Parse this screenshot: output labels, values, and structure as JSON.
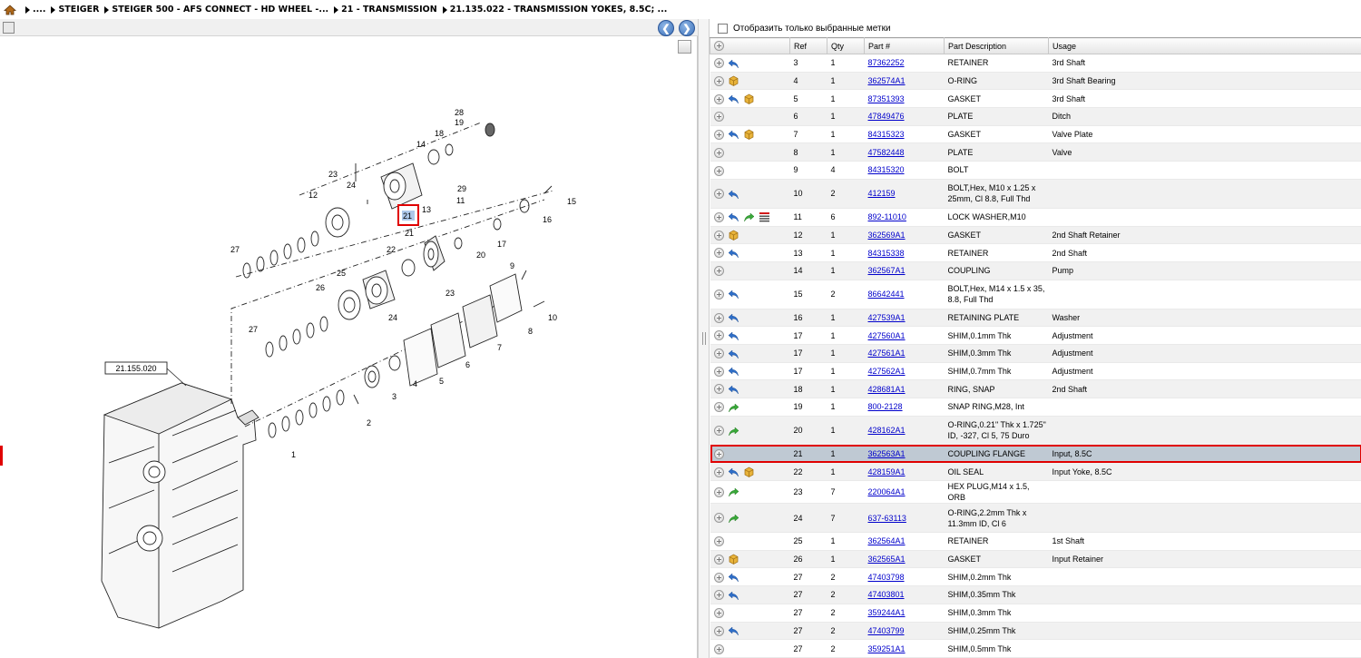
{
  "breadcrumb": {
    "segments": [
      "....",
      "STEIGER",
      "STEIGER 500 - AFS CONNECT - HD WHEEL -...",
      "21 - TRANSMISSION",
      "21.135.022 - TRANSMISSION YOKES, 8.5C; ..."
    ]
  },
  "filter": {
    "label": "Отобразить только выбранные метки"
  },
  "table": {
    "headers": {
      "ref": "Ref",
      "qty": "Qty",
      "part": "Part #",
      "desc": "Part Description",
      "usage": "Usage"
    },
    "rows": [
      {
        "ref": "3",
        "qty": "1",
        "part": "87362252",
        "desc": "RETAINER",
        "usage": "3rd Shaft",
        "icons": [
          "back"
        ]
      },
      {
        "ref": "4",
        "qty": "1",
        "part": "362574A1",
        "desc": "O-RING",
        "usage": "3rd Shaft Bearing",
        "icons": [
          "box"
        ]
      },
      {
        "ref": "5",
        "qty": "1",
        "part": "87351393",
        "desc": "GASKET",
        "usage": "3rd Shaft",
        "icons": [
          "back",
          "box"
        ]
      },
      {
        "ref": "6",
        "qty": "1",
        "part": "47849476",
        "desc": "PLATE",
        "usage": "Ditch",
        "icons": []
      },
      {
        "ref": "7",
        "qty": "1",
        "part": "84315323",
        "desc": "GASKET",
        "usage": "Valve Plate",
        "icons": [
          "back",
          "box"
        ]
      },
      {
        "ref": "8",
        "qty": "1",
        "part": "47582448",
        "desc": "PLATE",
        "usage": "Valve",
        "icons": []
      },
      {
        "ref": "9",
        "qty": "4",
        "part": "84315320",
        "desc": "BOLT",
        "usage": "",
        "icons": []
      },
      {
        "ref": "10",
        "qty": "2",
        "part": "412159",
        "desc": "BOLT,Hex, M10 x 1.25 x 25mm, Cl 8.8, Full Thd",
        "desc1": "BOLT,Hex, M10 x 1.25 x",
        "desc2": "25mm, Cl 8.8, Full Thd",
        "usage": "",
        "icons": [
          "back"
        ]
      },
      {
        "ref": "11",
        "qty": "6",
        "part": "892-11010",
        "desc": "LOCK WASHER,M10",
        "usage": "",
        "icons": [
          "back",
          "fwd",
          "list"
        ]
      },
      {
        "ref": "12",
        "qty": "1",
        "part": "362569A1",
        "desc": "GASKET",
        "usage": "2nd Shaft Retainer",
        "icons": [
          "box"
        ]
      },
      {
        "ref": "13",
        "qty": "1",
        "part": "84315338",
        "desc": "RETAINER",
        "usage": "2nd Shaft",
        "icons": [
          "back"
        ]
      },
      {
        "ref": "14",
        "qty": "1",
        "part": "362567A1",
        "desc": "COUPLING",
        "usage": "Pump",
        "icons": []
      },
      {
        "ref": "15",
        "qty": "2",
        "part": "86642441",
        "desc1": "BOLT,Hex, M14 x 1.5 x 35,",
        "desc2": "8.8, Full Thd",
        "usage": "",
        "icons": [
          "back"
        ]
      },
      {
        "ref": "16",
        "qty": "1",
        "part": "427539A1",
        "desc": "RETAINING PLATE",
        "usage": "Washer",
        "icons": [
          "back"
        ]
      },
      {
        "ref": "17",
        "qty": "1",
        "part": "427560A1",
        "desc": "SHIM,0.1mm Thk",
        "usage": "Adjustment",
        "icons": [
          "back"
        ]
      },
      {
        "ref": "17",
        "qty": "1",
        "part": "427561A1",
        "desc": "SHIM,0.3mm Thk",
        "usage": "Adjustment",
        "icons": [
          "back"
        ]
      },
      {
        "ref": "17",
        "qty": "1",
        "part": "427562A1",
        "desc": "SHIM,0.7mm Thk",
        "usage": "Adjustment",
        "icons": [
          "back"
        ]
      },
      {
        "ref": "18",
        "qty": "1",
        "part": "428681A1",
        "desc": "RING, SNAP",
        "usage": "2nd Shaft",
        "icons": [
          "back"
        ]
      },
      {
        "ref": "19",
        "qty": "1",
        "part": "800-2128",
        "desc": "SNAP RING,M28, Int",
        "usage": "",
        "icons": [
          "fwd"
        ]
      },
      {
        "ref": "20",
        "qty": "1",
        "part": "428162A1",
        "desc1": "O-RING,0.21\" Thk x 1.725\"",
        "desc2": "ID, -327, Cl 5, 75 Duro",
        "usage": "",
        "icons": [
          "fwd"
        ]
      },
      {
        "ref": "21",
        "qty": "1",
        "part": "362563A1",
        "desc": "COUPLING FLANGE",
        "usage": "Input, 8.5C",
        "icons": [],
        "selected": true
      },
      {
        "ref": "22",
        "qty": "1",
        "part": "428159A1",
        "desc": "OIL SEAL",
        "usage": "Input Yoke, 8.5C",
        "icons": [
          "back",
          "box"
        ]
      },
      {
        "ref": "23",
        "qty": "7",
        "part": "220064A1",
        "desc": "HEX PLUG,M14 x 1.5, ORB",
        "usage": "",
        "icons": [
          "fwd"
        ]
      },
      {
        "ref": "24",
        "qty": "7",
        "part": "637-63113",
        "desc1": "O-RING,2.2mm Thk x",
        "desc2": "11.3mm ID, Cl 6",
        "usage": "",
        "icons": [
          "fwd"
        ]
      },
      {
        "ref": "25",
        "qty": "1",
        "part": "362564A1",
        "desc": "RETAINER",
        "usage": "1st Shaft",
        "icons": []
      },
      {
        "ref": "26",
        "qty": "1",
        "part": "362565A1",
        "desc": "GASKET",
        "usage": "Input Retainer",
        "icons": [
          "box"
        ]
      },
      {
        "ref": "27",
        "qty": "2",
        "part": "47403798",
        "desc": "SHIM,0.2mm Thk",
        "usage": "",
        "icons": [
          "back"
        ]
      },
      {
        "ref": "27",
        "qty": "2",
        "part": "47403801",
        "desc": "SHIM,0.35mm Thk",
        "usage": "",
        "icons": [
          "back"
        ]
      },
      {
        "ref": "27",
        "qty": "2",
        "part": "359244A1",
        "desc": "SHIM,0.3mm Thk",
        "usage": "",
        "icons": []
      },
      {
        "ref": "27",
        "qty": "2",
        "part": "47403799",
        "desc": "SHIM,0.25mm Thk",
        "usage": "",
        "icons": [
          "back"
        ]
      },
      {
        "ref": "27",
        "qty": "2",
        "part": "359251A1",
        "desc": "SHIM,0.5mm Thk",
        "usage": "",
        "icons": []
      }
    ]
  },
  "diagram": {
    "group_ref": "21.155.020",
    "selected_callout": "21",
    "callouts": [
      "28",
      "19",
      "18",
      "14",
      "23",
      "24",
      "29",
      "11",
      "13",
      "12",
      "15",
      "16",
      "21",
      "17",
      "22",
      "20",
      "27",
      "25",
      "26",
      "23",
      "9",
      "24",
      "10",
      "8",
      "27",
      "7",
      "6",
      "5",
      "4",
      "3",
      "2",
      "1"
    ]
  },
  "colors": {
    "link": "#0000cc",
    "selection_outline": "#e00000",
    "selected_row": "#bfc9d3",
    "nav_button": "#3a6fb8"
  }
}
